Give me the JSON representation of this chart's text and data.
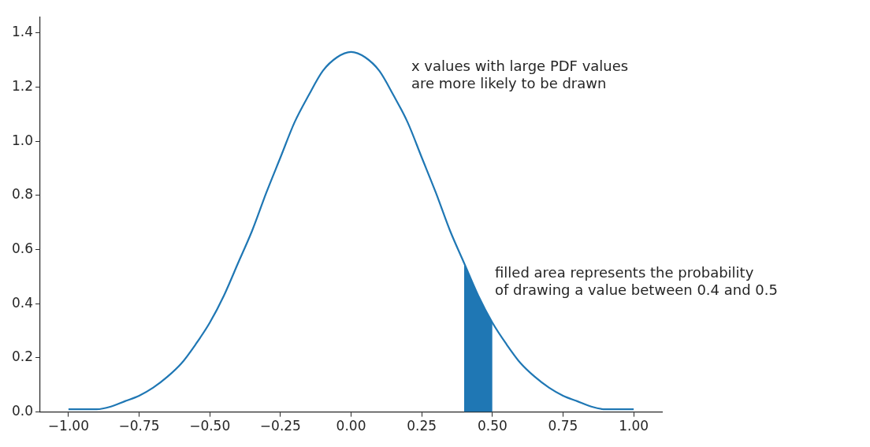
{
  "chart_data": {
    "type": "line",
    "xlim": [
      -1.1,
      1.1
    ],
    "ylim": [
      0,
      1.46
    ],
    "xticks": [
      {
        "value": -1,
        "label": "−1.00"
      },
      {
        "value": -0.75,
        "label": "−0.75"
      },
      {
        "value": -0.5,
        "label": "−0.50"
      },
      {
        "value": -0.25,
        "label": "−0.25"
      },
      {
        "value": 0,
        "label": "0.00"
      },
      {
        "value": 0.25,
        "label": "0.25"
      },
      {
        "value": 0.5,
        "label": "0.50"
      },
      {
        "value": 0.75,
        "label": "0.75"
      },
      {
        "value": 1,
        "label": "1.00"
      }
    ],
    "yticks": [
      {
        "value": 0,
        "label": "0.0"
      },
      {
        "value": 0.2,
        "label": "0.2"
      },
      {
        "value": 0.4,
        "label": "0.4"
      },
      {
        "value": 0.6,
        "label": "0.6"
      },
      {
        "value": 0.8,
        "label": "0.8"
      },
      {
        "value": 1,
        "label": "1.0"
      },
      {
        "value": 1.2,
        "label": "1.2"
      },
      {
        "value": 1.4,
        "label": "1.4"
      }
    ],
    "series": [
      {
        "type": "line",
        "color": "#1f77b4",
        "x": [
          -1,
          -0.95,
          -0.9,
          -0.85,
          -0.8,
          -0.75,
          -0.7,
          -0.65,
          -0.6,
          -0.55,
          -0.5,
          -0.45,
          -0.4,
          -0.35,
          -0.3,
          -0.25,
          -0.2,
          -0.15,
          -0.1,
          -0.05,
          0,
          0.05,
          0.1,
          0.15,
          0.2,
          0.25,
          0.3,
          0.35,
          0.4,
          0.45,
          0.5,
          0.55,
          0.6,
          0.65,
          0.7,
          0.75,
          0.8,
          0.85,
          0.9,
          0.95,
          1
        ],
        "values": [
          0.01,
          0.01,
          0.01,
          0.02,
          0.04,
          0.06,
          0.09,
          0.13,
          0.18,
          0.25,
          0.33,
          0.43,
          0.55,
          0.67,
          0.81,
          0.94,
          1.07,
          1.17,
          1.26,
          1.31,
          1.33,
          1.31,
          1.26,
          1.17,
          1.07,
          0.94,
          0.81,
          0.67,
          0.55,
          0.43,
          0.33,
          0.25,
          0.18,
          0.13,
          0.09,
          0.06,
          0.04,
          0.02,
          0.01,
          0.01,
          0.01
        ]
      },
      {
        "type": "area",
        "color": "#1f77b4",
        "x": [
          0.4,
          0.425,
          0.45,
          0.475,
          0.5
        ],
        "values": [
          0.55,
          0.49,
          0.43,
          0.38,
          0.33
        ]
      }
    ],
    "annotations": [
      "x values with large PDF values\nare more likely to be drawn",
      "filled area represents the probability\nof drawing a value between 0.4 and 0.5"
    ]
  }
}
